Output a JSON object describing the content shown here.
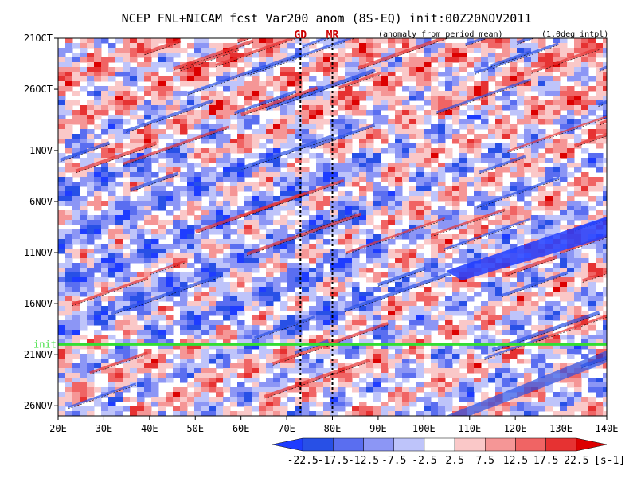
{
  "chart_data": {
    "type": "heatmap",
    "title": "NCEP_FNL+NICAM_fcst Var200_anom (8S-EQ) init:00Z20NOV2011",
    "subtitle_left": "(anomaly from period mean)",
    "subtitle_right": "(1.0deg intpl)",
    "x_axis": {
      "range": [
        20,
        140
      ],
      "ticks": [
        20,
        30,
        40,
        50,
        60,
        70,
        80,
        90,
        100,
        110,
        120,
        130,
        140
      ],
      "tick_labels": [
        "20E",
        "30E",
        "40E",
        "50E",
        "60E",
        "70E",
        "80E",
        "90E",
        "100E",
        "110E",
        "120E",
        "130E",
        "140E"
      ]
    },
    "y_axis": {
      "range": [
        "21OCT",
        "27NOV"
      ],
      "ticks": [
        "21OCT",
        "26OCT",
        "1NOV",
        "6NOV",
        "11NOV",
        "16NOV",
        "21NOV",
        "26NOV"
      ],
      "tick_labels": [
        "21OCT",
        "26OCT",
        "1NOV",
        "6NOV",
        "11NOV",
        "16NOV",
        "21NOV",
        "26NOV"
      ]
    },
    "markers": [
      {
        "label": "GD",
        "lon": 73
      },
      {
        "label": "MR",
        "lon": 80
      }
    ],
    "init_line": {
      "label": "init",
      "date": "20NOV"
    },
    "colorbar": {
      "levels": [
        "-22.5",
        "-17.5",
        "-12.5",
        "-7.5",
        "-2.5",
        "2.5",
        "7.5",
        "12.5",
        "17.5",
        "22.5"
      ],
      "unit": "[s-1]",
      "colors": [
        "#1e3cff",
        "#2850e6",
        "#5a6ef0",
        "#8c96f5",
        "#bec4fa",
        "#ffffff",
        "#fac8c8",
        "#f59696",
        "#f06464",
        "#e63232",
        "#dc0000"
      ]
    }
  }
}
